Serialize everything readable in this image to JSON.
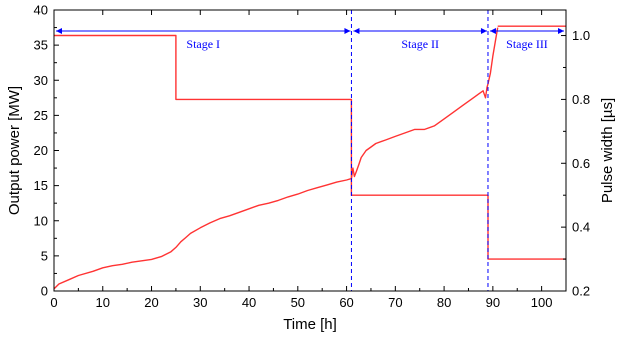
{
  "chart_data": {
    "type": "line",
    "title": "",
    "xlabel": "Time [h]",
    "ylabel": "Output power [MW]",
    "y2label": "Pulse width [µs]",
    "xlim": [
      0,
      105
    ],
    "ylim": [
      0,
      40
    ],
    "y2lim": [
      0.2,
      1.08
    ],
    "x_ticks": [
      "0",
      "10",
      "20",
      "30",
      "40",
      "50",
      "60",
      "70",
      "80",
      "90",
      "100"
    ],
    "y_ticks": [
      "0",
      "5",
      "10",
      "15",
      "20",
      "25",
      "30",
      "35",
      "40"
    ],
    "y2_ticks": [
      "0.2",
      "0.4",
      "0.6",
      "0.8",
      "1.0"
    ],
    "grid": false,
    "line_color": "#ff3333",
    "stage_color": "#0000ff",
    "stages": [
      {
        "label": "Stage I",
        "x_start": 0,
        "x_end": 61
      },
      {
        "label": "Stage II",
        "x_start": 61,
        "x_end": 89
      },
      {
        "label": "Stage III",
        "x_start": 89,
        "x_end": 105
      }
    ],
    "stage_dividers": [
      61,
      89
    ],
    "series": [
      {
        "axis": "left",
        "x": [
          0,
          1,
          3,
          5,
          8,
          10,
          12,
          14,
          16,
          18,
          20,
          22,
          24,
          25,
          26,
          27,
          28,
          30,
          32,
          34,
          36,
          38,
          40,
          42,
          44,
          46,
          48,
          50,
          52,
          54,
          56,
          58,
          60,
          61,
          61.3,
          61.6,
          62,
          62.5,
          63,
          64,
          65,
          66,
          68,
          70,
          72,
          74,
          76,
          78,
          80,
          82,
          84,
          86,
          87,
          88,
          88.5,
          88.8,
          89,
          89.5,
          90,
          90.5,
          91
        ],
        "y": [
          0.3,
          1.0,
          1.6,
          2.2,
          2.8,
          3.3,
          3.6,
          3.8,
          4.1,
          4.3,
          4.5,
          4.9,
          5.6,
          6.2,
          7.0,
          7.6,
          8.2,
          9.0,
          9.7,
          10.3,
          10.7,
          11.2,
          11.7,
          12.2,
          12.5,
          12.9,
          13.4,
          13.8,
          14.3,
          14.7,
          15.1,
          15.5,
          15.8,
          16.0,
          17.5,
          16.3,
          17.0,
          18.0,
          19.0,
          20.0,
          20.5,
          21.0,
          21.5,
          22.0,
          22.5,
          23.0,
          23.0,
          23.5,
          24.5,
          25.5,
          26.5,
          27.5,
          28.0,
          28.5,
          27.5,
          29.0,
          29.5,
          31.0,
          33.5,
          35.5,
          37.5
        ]
      },
      {
        "axis": "right",
        "x": [
          0,
          25,
          25,
          61,
          61,
          89,
          89,
          105
        ],
        "y": [
          1.0,
          1.0,
          0.8,
          0.8,
          0.5,
          0.5,
          0.3,
          0.3
        ]
      },
      {
        "axis": "left",
        "x": [
          91,
          105
        ],
        "y": [
          37.7,
          37.7
        ]
      }
    ]
  }
}
